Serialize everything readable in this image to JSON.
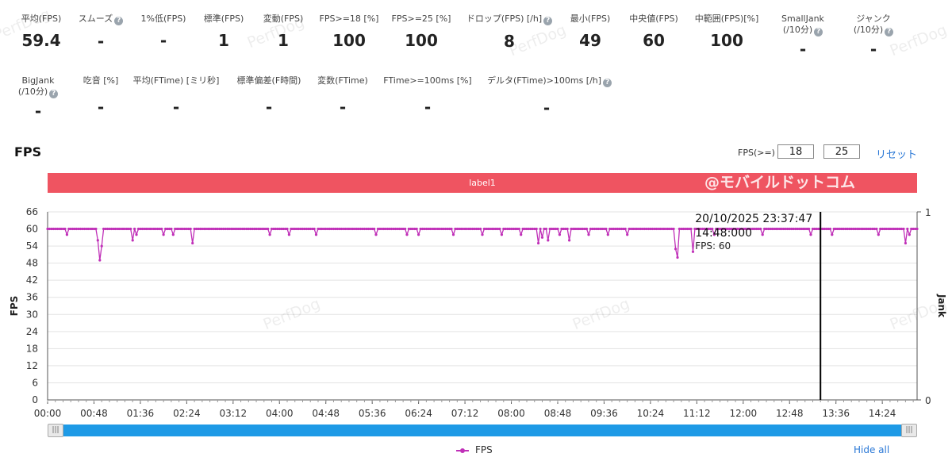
{
  "stats_row1": [
    {
      "label": "平均(FPS)",
      "value": "59.4",
      "help": false
    },
    {
      "label": "スムーズ",
      "value": "-",
      "help": true
    },
    {
      "label": "1%低(FPS)",
      "value": "-",
      "help": false
    },
    {
      "label": "標準(FPS)",
      "value": "1",
      "help": false
    },
    {
      "label": "変動(FPS)",
      "value": "1",
      "help": false
    },
    {
      "label": "FPS>=18 [%]",
      "value": "100",
      "help": false
    },
    {
      "label": "FPS>=25 [%]",
      "value": "100",
      "help": false
    },
    {
      "label": "ドロップ(FPS) [/h]",
      "value": "8",
      "help": true
    },
    {
      "label": "最小(FPS)",
      "value": "49",
      "help": false
    },
    {
      "label": "中央値(FPS)",
      "value": "60",
      "help": false
    },
    {
      "label": "中範囲(FPS)[%]",
      "value": "100",
      "help": false
    },
    {
      "label": "SmallJank",
      "label2": "(/10分)",
      "value": "-",
      "help": true
    },
    {
      "label": "ジャンク",
      "label2": "(/10分)",
      "value": "-",
      "help": true
    }
  ],
  "stats_row2": [
    {
      "label": "BigJank",
      "label2": "(/10分)",
      "value": "-",
      "help": true
    },
    {
      "label": "吃音 [%]",
      "value": "-",
      "help": false
    },
    {
      "label": "平均(FTime) [ミリ秒]",
      "value": "-",
      "help": false
    },
    {
      "label": "標準偏差(F時間)",
      "value": "-",
      "help": false
    },
    {
      "label": "変数(FTime)",
      "value": "-",
      "help": false
    },
    {
      "label": "FTime>=100ms [%]",
      "value": "-",
      "help": false
    },
    {
      "label": "デルタ(FTime)>100ms [/h]",
      "value": "-",
      "help": true
    }
  ],
  "help_glyph": "?",
  "controls": {
    "threshold_label": "FPS(>=)",
    "threshold_1": "18",
    "threshold_2": "25",
    "reset_label": "リセット"
  },
  "label_band": {
    "text": "label1",
    "color": "#ef5461"
  },
  "brand_overlay": "@モバイルドットコム",
  "watermark": "PerfDog",
  "tooltip": {
    "time": "20/10/2025 23:37:47",
    "time2": "14:48:000",
    "series_label": "FPS: 60"
  },
  "scroll_handle_glyph": "|||",
  "legend": {
    "series_name": "FPS",
    "hide_all": "Hide all"
  },
  "chart_data": {
    "type": "line",
    "title": "FPS",
    "ylabel": "FPS",
    "y2label": "Jank",
    "ylim": [
      0,
      66
    ],
    "y2lim": [
      0,
      1
    ],
    "yticks": [
      0,
      6,
      12,
      18,
      24,
      30,
      36,
      42,
      48,
      54,
      60,
      66
    ],
    "y2ticks": [
      0,
      1
    ],
    "xlim": [
      0,
      900
    ],
    "x_unit": "seconds (mm:ss)",
    "xtick_labels": [
      "00:00",
      "00:48",
      "01:36",
      "02:24",
      "03:12",
      "04:00",
      "04:48",
      "05:36",
      "06:24",
      "07:12",
      "08:00",
      "08:48",
      "09:36",
      "10:24",
      "11:12",
      "12:00",
      "12:48",
      "13:36",
      "14:24"
    ],
    "grid": true,
    "legend_position": "bottom",
    "series": [
      {
        "name": "FPS",
        "color": "#c030b8",
        "baseline": 60,
        "dips": [
          {
            "t": 20,
            "fps": 58
          },
          {
            "t": 52,
            "fps": 56
          },
          {
            "t": 54,
            "fps": 49
          },
          {
            "t": 56,
            "fps": 54
          },
          {
            "t": 85,
            "fps": 55
          },
          {
            "t": 88,
            "fps": 56
          },
          {
            "t": 92,
            "fps": 58
          },
          {
            "t": 120,
            "fps": 58
          },
          {
            "t": 130,
            "fps": 58
          },
          {
            "t": 150,
            "fps": 55
          },
          {
            "t": 165,
            "fps": 57
          },
          {
            "t": 185,
            "fps": 58
          },
          {
            "t": 230,
            "fps": 58
          },
          {
            "t": 250,
            "fps": 58
          },
          {
            "t": 278,
            "fps": 58
          },
          {
            "t": 295,
            "fps": 58
          },
          {
            "t": 340,
            "fps": 58
          },
          {
            "t": 372,
            "fps": 58
          },
          {
            "t": 384,
            "fps": 58
          },
          {
            "t": 397,
            "fps": 58
          },
          {
            "t": 420,
            "fps": 58
          },
          {
            "t": 450,
            "fps": 58
          },
          {
            "t": 470,
            "fps": 58
          },
          {
            "t": 490,
            "fps": 58
          },
          {
            "t": 508,
            "fps": 55
          },
          {
            "t": 512,
            "fps": 57
          },
          {
            "t": 515,
            "fps": 54
          },
          {
            "t": 518,
            "fps": 56
          },
          {
            "t": 530,
            "fps": 58
          },
          {
            "t": 540,
            "fps": 56
          },
          {
            "t": 560,
            "fps": 58
          },
          {
            "t": 580,
            "fps": 58
          },
          {
            "t": 600,
            "fps": 58
          },
          {
            "t": 625,
            "fps": 58
          },
          {
            "t": 650,
            "fps": 53
          },
          {
            "t": 652,
            "fps": 50
          },
          {
            "t": 655,
            "fps": 56
          },
          {
            "t": 663,
            "fps": 54
          },
          {
            "t": 668,
            "fps": 52
          },
          {
            "t": 675,
            "fps": 57
          },
          {
            "t": 690,
            "fps": 58
          },
          {
            "t": 705,
            "fps": 55
          },
          {
            "t": 715,
            "fps": 58
          },
          {
            "t": 740,
            "fps": 58
          },
          {
            "t": 755,
            "fps": 54
          },
          {
            "t": 765,
            "fps": 58
          },
          {
            "t": 790,
            "fps": 58
          },
          {
            "t": 812,
            "fps": 58
          },
          {
            "t": 860,
            "fps": 58
          },
          {
            "t": 885,
            "fps": 57
          },
          {
            "t": 888,
            "fps": 55
          },
          {
            "t": 892,
            "fps": 58
          }
        ]
      }
    ],
    "cursor_x": 800
  }
}
